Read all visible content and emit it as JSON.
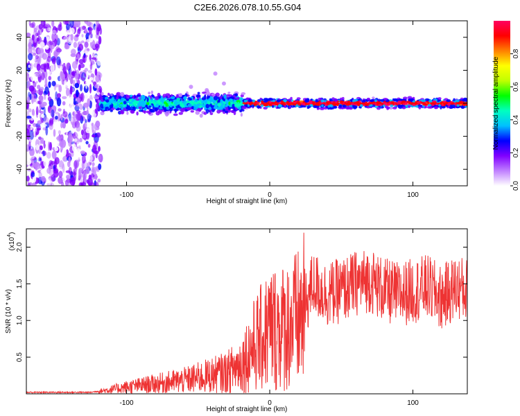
{
  "title": "C2E6.2026.078.10.55.G04",
  "chart_data": [
    {
      "type": "heatmap",
      "xlabel": "Height of straight line (km)",
      "ylabel": "Frequency (Hz)",
      "xlim": [
        -170,
        138
      ],
      "ylim": [
        -50,
        50
      ],
      "x_ticks": [
        -100,
        0,
        100
      ],
      "y_ticks": [
        -40,
        -20,
        0,
        20,
        40
      ],
      "description_bands": [
        {
          "x_range": [
            -170,
            -118
          ],
          "freq_spread": [
            -50,
            50
          ],
          "amplitude": 0.15
        },
        {
          "x_range": [
            -118,
            -18
          ],
          "freq_center": 0,
          "freq_spread": [
            -8,
            8
          ],
          "amplitude": 0.45
        },
        {
          "x_range": [
            -18,
            138
          ],
          "freq_center": 0,
          "freq_spread": [
            -4,
            4
          ],
          "amplitude": 0.9
        }
      ],
      "colorbar": {
        "label": "Normalized spectral amplitude",
        "range": [
          0.0,
          1.0
        ],
        "ticks": [
          "0.0",
          "0.2",
          "0.4",
          "0.6",
          "0.8"
        ],
        "colors": [
          "#ffffff",
          "#c080ff",
          "#8000ff",
          "#0000ff",
          "#00c0ff",
          "#00ffc0",
          "#00ff00",
          "#c0ff00",
          "#ffff00",
          "#ff8000",
          "#ff0000",
          "#ff0060"
        ]
      }
    },
    {
      "type": "line",
      "xlabel": "Height of straight line (km)",
      "ylabel": "SNR (10 * v/v)",
      "yscale_label": "(x10",
      "yscale_exp": "4",
      "xlim": [
        -170,
        138
      ],
      "ylim": [
        0,
        2.25
      ],
      "x_ticks": [
        -100,
        0,
        100
      ],
      "y_ticks": [
        "0.5",
        "1.0",
        "1.5",
        "2.0"
      ],
      "series": [
        {
          "name": "SNR",
          "color": "#ee3333",
          "x": [
            -170,
            -150,
            -125,
            -115,
            -100,
            -80,
            -60,
            -40,
            -30,
            -20,
            -15,
            -10,
            -5,
            0,
            10,
            20,
            25,
            30,
            40,
            50,
            60,
            70,
            80,
            90,
            100,
            110,
            120,
            130,
            138
          ],
          "y": [
            0.02,
            0.02,
            0.02,
            0.05,
            0.1,
            0.15,
            0.2,
            0.28,
            0.32,
            0.45,
            0.6,
            0.75,
            0.85,
            0.98,
            1.0,
            1.1,
            1.25,
            1.55,
            1.4,
            1.45,
            1.55,
            1.6,
            1.45,
            1.4,
            1.45,
            1.5,
            1.35,
            1.5,
            1.45
          ]
        }
      ]
    }
  ]
}
